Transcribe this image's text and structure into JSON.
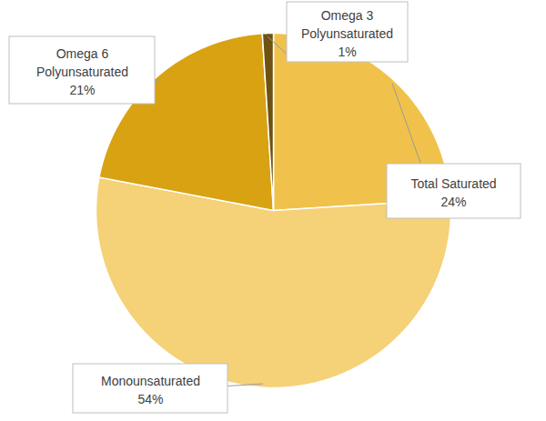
{
  "chart_data": {
    "type": "pie",
    "categories": [
      "Total Saturated",
      "Monounsaturated",
      "Omega 6 Polyunsaturated",
      "Omega 3 Polyunsaturated"
    ],
    "values": [
      24,
      54,
      21,
      1
    ],
    "value_labels": [
      "24%",
      "54%",
      "21%",
      "1%"
    ],
    "colors": [
      "#f0c24b",
      "#f5d177",
      "#d8a212",
      "#6e5212"
    ],
    "data_labels": true
  }
}
